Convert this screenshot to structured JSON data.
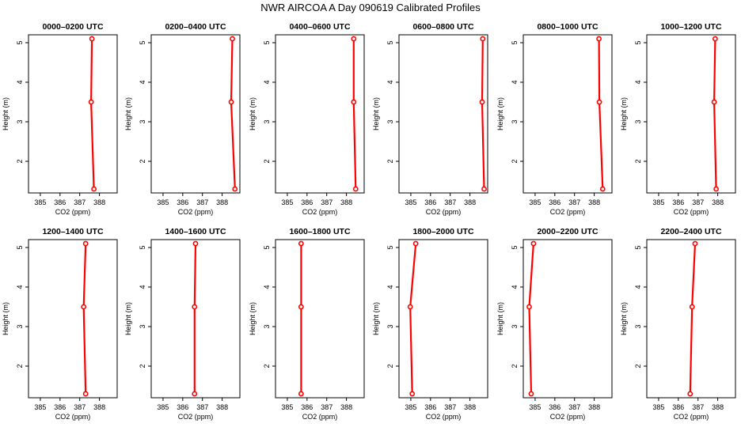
{
  "page": {
    "title": "NWR AIRCOA A  Day 090619  Calibrated Profiles"
  },
  "colors": {
    "series": "#ff0000",
    "axes": "#000000",
    "background": "#ffffff"
  },
  "chart_data": [
    {
      "type": "line",
      "title": "0000–0200 UTC",
      "xlabel": "CO2 (ppm)",
      "ylabel": "Height (m)",
      "xlim": [
        384.4,
        388.9
      ],
      "ylim": [
        1.2,
        5.2
      ],
      "xticks": [
        385,
        386,
        387,
        388
      ],
      "yticks": [
        2,
        3,
        4,
        5
      ],
      "x": [
        387.72,
        387.58,
        387.62
      ],
      "y": [
        1.3,
        3.5,
        5.1
      ]
    },
    {
      "type": "line",
      "title": "0200–0400 UTC",
      "xlabel": "CO2 (ppm)",
      "ylabel": "Height (m)",
      "xlim": [
        384.4,
        388.9
      ],
      "ylim": [
        1.2,
        5.2
      ],
      "xticks": [
        385,
        386,
        387,
        388
      ],
      "yticks": [
        2,
        3,
        4,
        5
      ],
      "x": [
        388.65,
        388.46,
        388.52
      ],
      "y": [
        1.3,
        3.5,
        5.1
      ]
    },
    {
      "type": "line",
      "title": "0400–0600 UTC",
      "xlabel": "CO2 (ppm)",
      "ylabel": "Height (m)",
      "xlim": [
        384.4,
        388.9
      ],
      "ylim": [
        1.2,
        5.2
      ],
      "xticks": [
        385,
        386,
        387,
        388
      ],
      "yticks": [
        2,
        3,
        4,
        5
      ],
      "x": [
        388.47,
        388.37,
        388.37
      ],
      "y": [
        1.3,
        3.5,
        5.1
      ]
    },
    {
      "type": "line",
      "title": "0600–0800 UTC",
      "xlabel": "CO2 (ppm)",
      "ylabel": "Height (m)",
      "xlim": [
        384.4,
        388.9
      ],
      "ylim": [
        1.2,
        5.2
      ],
      "xticks": [
        385,
        386,
        387,
        388
      ],
      "yticks": [
        2,
        3,
        4,
        5
      ],
      "x": [
        388.72,
        388.62,
        388.65
      ],
      "y": [
        1.3,
        3.5,
        5.1
      ]
    },
    {
      "type": "line",
      "title": "0800–1000 UTC",
      "xlabel": "CO2 (ppm)",
      "ylabel": "Height (m)",
      "xlim": [
        384.4,
        388.9
      ],
      "ylim": [
        1.2,
        5.2
      ],
      "xticks": [
        385,
        386,
        387,
        388
      ],
      "yticks": [
        2,
        3,
        4,
        5
      ],
      "x": [
        388.43,
        388.26,
        388.24
      ],
      "y": [
        1.3,
        3.5,
        5.1
      ]
    },
    {
      "type": "line",
      "title": "1000–1200 UTC",
      "xlabel": "CO2 (ppm)",
      "ylabel": "Height (m)",
      "xlim": [
        384.4,
        388.9
      ],
      "ylim": [
        1.2,
        5.2
      ],
      "xticks": [
        385,
        386,
        387,
        388
      ],
      "yticks": [
        2,
        3,
        4,
        5
      ],
      "x": [
        387.92,
        387.82,
        387.87
      ],
      "y": [
        1.3,
        3.5,
        5.1
      ]
    },
    {
      "type": "line",
      "title": "1200–1400 UTC",
      "xlabel": "CO2 (ppm)",
      "ylabel": "Height (m)",
      "xlim": [
        384.4,
        388.9
      ],
      "ylim": [
        1.2,
        5.2
      ],
      "xticks": [
        385,
        386,
        387,
        388
      ],
      "yticks": [
        2,
        3,
        4,
        5
      ],
      "x": [
        387.3,
        387.2,
        387.3
      ],
      "y": [
        1.3,
        3.5,
        5.1
      ]
    },
    {
      "type": "line",
      "title": "1400–1600 UTC",
      "xlabel": "CO2 (ppm)",
      "ylabel": "Height (m)",
      "xlim": [
        384.4,
        388.9
      ],
      "ylim": [
        1.2,
        5.2
      ],
      "xticks": [
        385,
        386,
        387,
        388
      ],
      "yticks": [
        2,
        3,
        4,
        5
      ],
      "x": [
        386.6,
        386.6,
        386.65
      ],
      "y": [
        1.3,
        3.5,
        5.1
      ]
    },
    {
      "type": "line",
      "title": "1600–1800 UTC",
      "xlabel": "CO2 (ppm)",
      "ylabel": "Height (m)",
      "xlim": [
        384.4,
        388.9
      ],
      "ylim": [
        1.2,
        5.2
      ],
      "xticks": [
        385,
        386,
        387,
        388
      ],
      "yticks": [
        2,
        3,
        4,
        5
      ],
      "x": [
        385.7,
        385.7,
        385.7
      ],
      "y": [
        1.3,
        3.5,
        5.1
      ]
    },
    {
      "type": "line",
      "title": "1800–2000 UTC",
      "xlabel": "CO2 (ppm)",
      "ylabel": "Height (m)",
      "xlim": [
        384.4,
        388.9
      ],
      "ylim": [
        1.2,
        5.2
      ],
      "xticks": [
        385,
        386,
        387,
        388
      ],
      "yticks": [
        2,
        3,
        4,
        5
      ],
      "x": [
        385.07,
        384.97,
        385.25
      ],
      "y": [
        1.3,
        3.5,
        5.1
      ]
    },
    {
      "type": "line",
      "title": "2000–2200 UTC",
      "xlabel": "CO2 (ppm)",
      "ylabel": "Height (m)",
      "xlim": [
        384.4,
        388.9
      ],
      "ylim": [
        1.2,
        5.2
      ],
      "xticks": [
        385,
        386,
        387,
        388
      ],
      "yticks": [
        2,
        3,
        4,
        5
      ],
      "x": [
        384.8,
        384.7,
        384.92
      ],
      "y": [
        1.3,
        3.5,
        5.1
      ]
    },
    {
      "type": "line",
      "title": "2200–2400 UTC",
      "xlabel": "CO2 (ppm)",
      "ylabel": "Height (m)",
      "xlim": [
        384.4,
        388.9
      ],
      "ylim": [
        1.2,
        5.2
      ],
      "xticks": [
        385,
        386,
        387,
        388
      ],
      "yticks": [
        2,
        3,
        4,
        5
      ],
      "x": [
        386.6,
        386.7,
        386.85
      ],
      "y": [
        1.3,
        3.5,
        5.1
      ]
    }
  ]
}
